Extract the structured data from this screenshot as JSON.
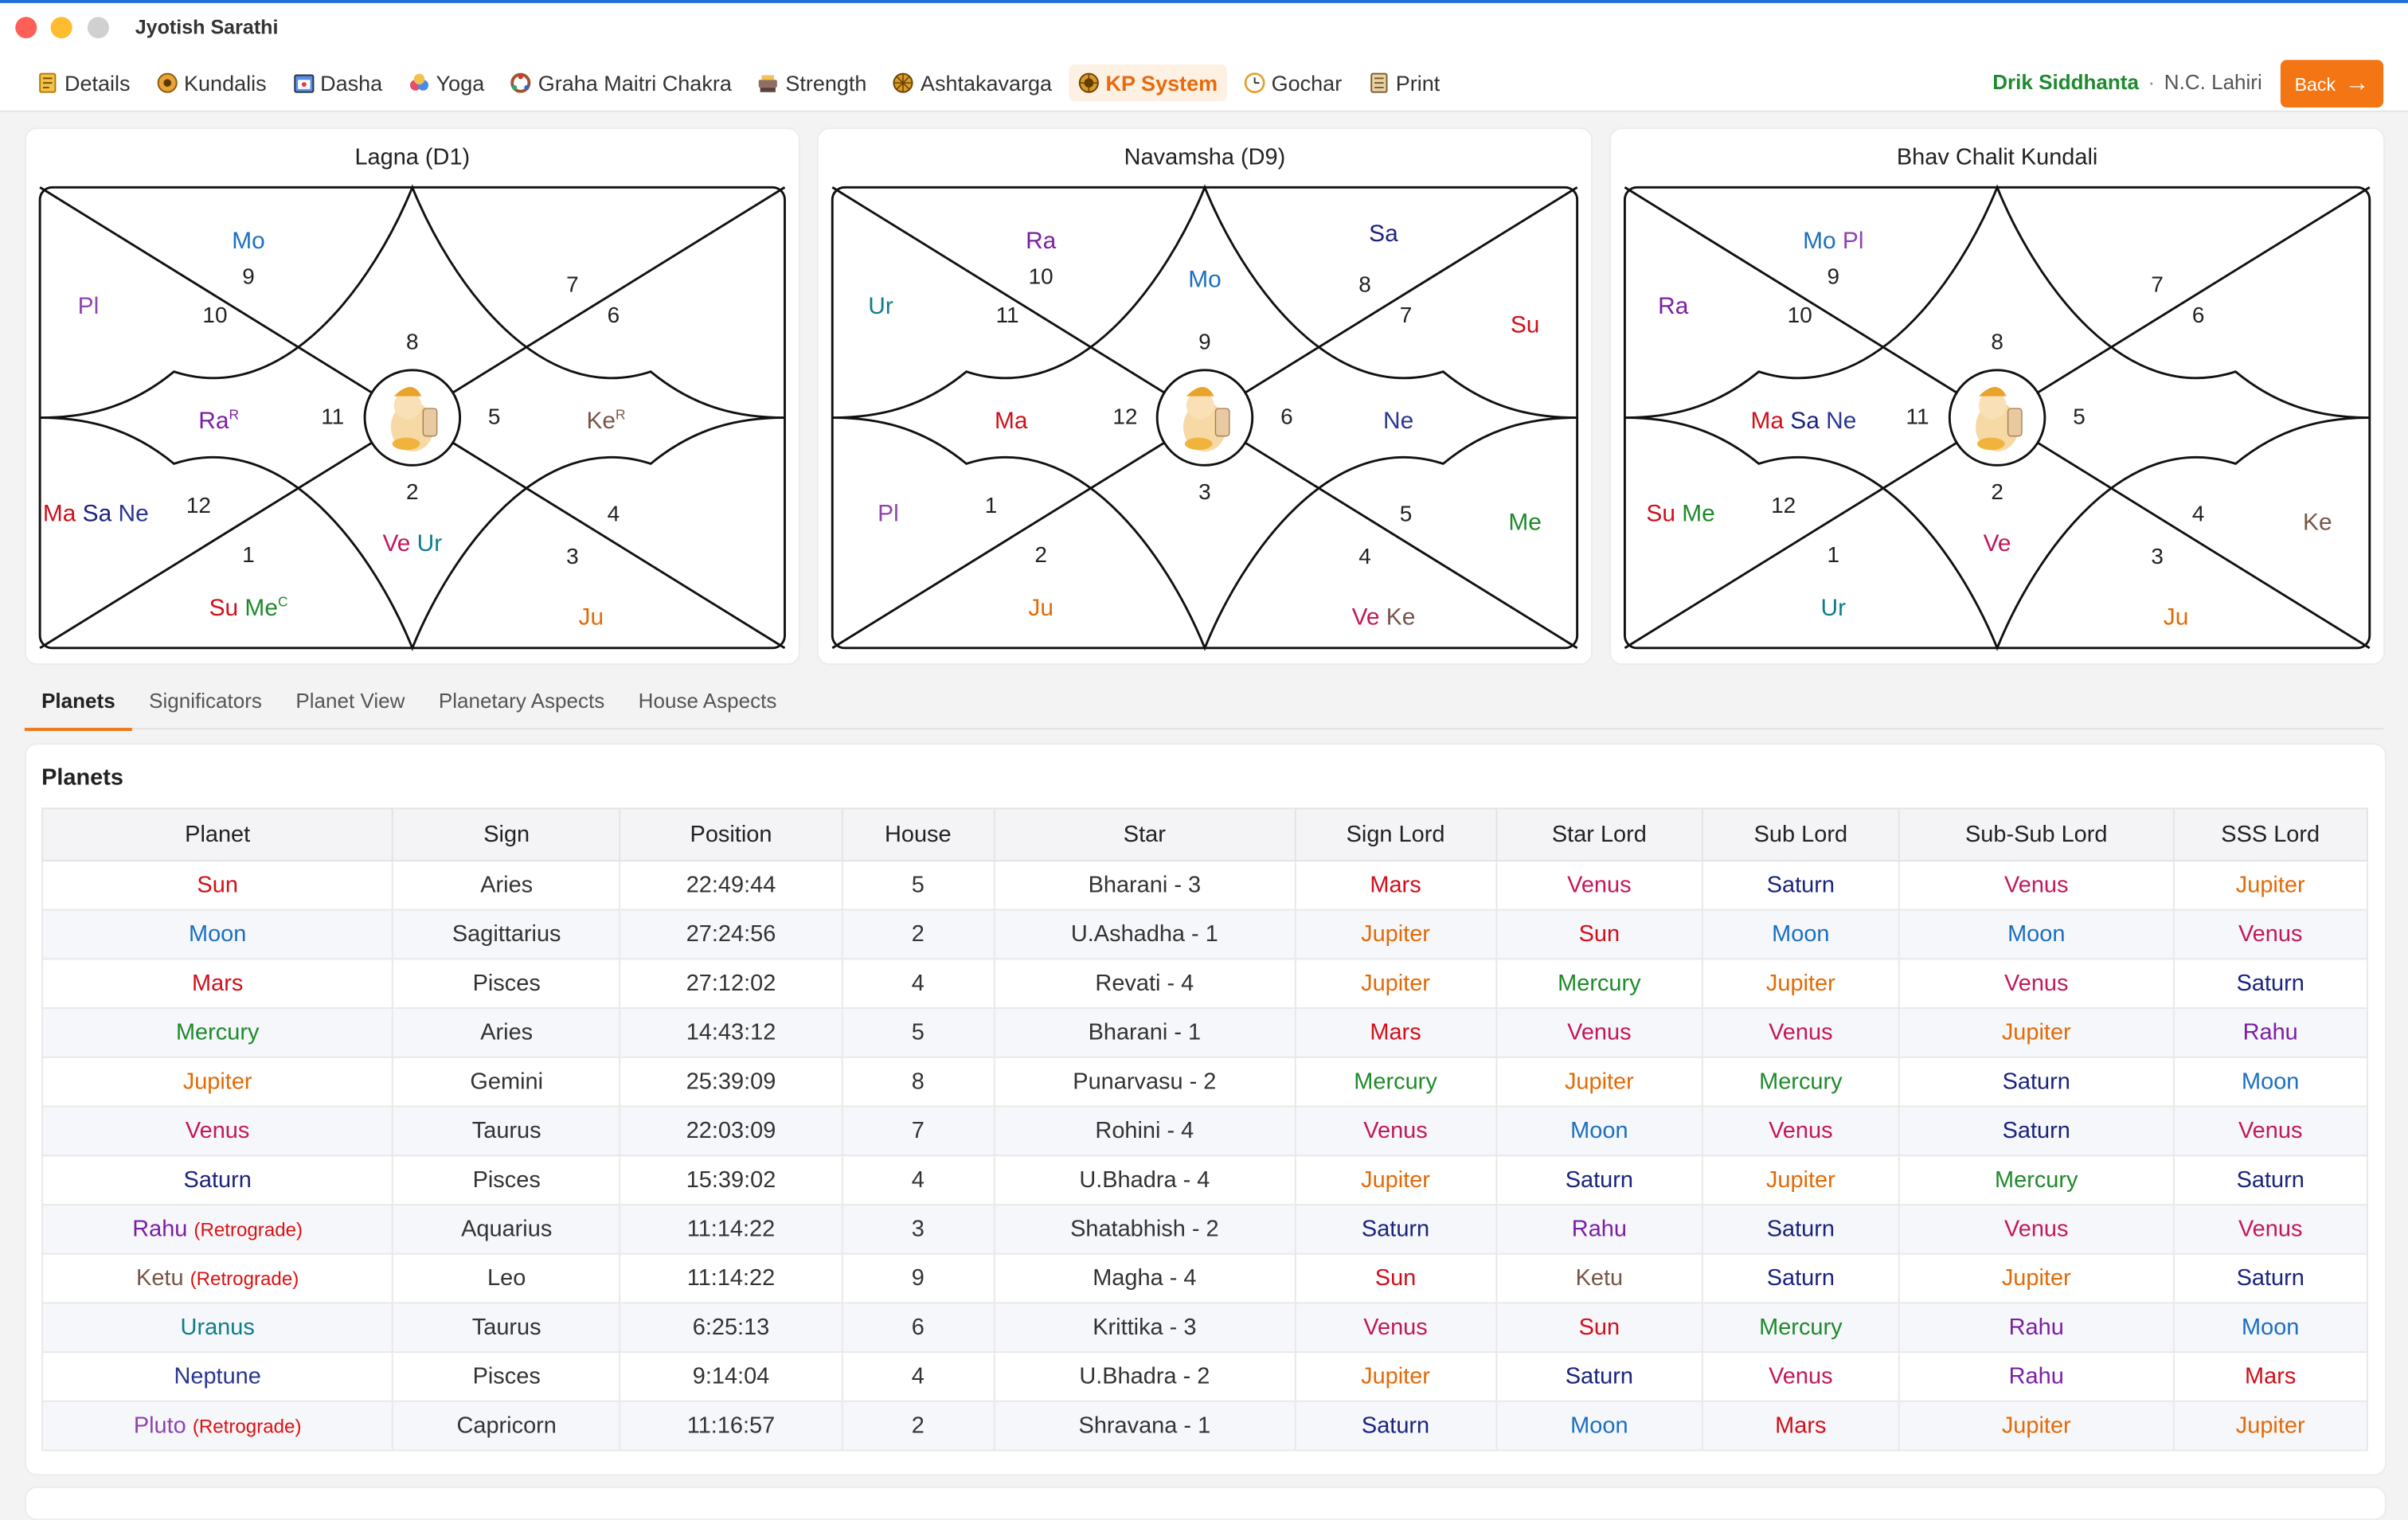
{
  "app": {
    "title": "Jyotish Sarathi"
  },
  "nav": [
    {
      "label": "Details",
      "icon": "details-icon"
    },
    {
      "label": "Kundalis",
      "icon": "kundalis-icon"
    },
    {
      "label": "Dasha",
      "icon": "dasha-icon"
    },
    {
      "label": "Yoga",
      "icon": "yoga-icon"
    },
    {
      "label": "Graha Maitri Chakra",
      "icon": "graha-maitri-icon"
    },
    {
      "label": "Strength",
      "icon": "strength-icon"
    },
    {
      "label": "Ashtakavarga",
      "icon": "ashtakavarga-icon"
    },
    {
      "label": "KP System",
      "icon": "kp-system-icon",
      "active": true
    },
    {
      "label": "Gochar",
      "icon": "gochar-icon"
    },
    {
      "label": "Print",
      "icon": "print-icon"
    }
  ],
  "header": {
    "siddhanta": "Drik Siddhanta",
    "separator": "·",
    "ayanamsa": "N.C. Lahiri",
    "back_label": "Back"
  },
  "colors": {
    "Su": "#d10f1a",
    "Mo": "#1a6fc0",
    "Ma": "#d10f1a",
    "Me": "#1e8a2a",
    "Ju": "#e36a05",
    "Ve": "#c2185b",
    "Sa": "#1a237e",
    "Ra": "#7b1fa2",
    "Ke": "#795548",
    "Ur": "#0e7c8c",
    "Ne": "#283593",
    "Pl": "#8e44ad",
    "Sun": "#d10f1a",
    "Moon": "#1a6fc0",
    "Mars": "#d10f1a",
    "Mercury": "#1e8a2a",
    "Jupiter": "#e36a05",
    "Venus": "#c2185b",
    "Saturn": "#1a237e",
    "Rahu": "#7b1fa2",
    "Ketu": "#795548",
    "Uranus": "#0e7c8c",
    "Neptune": "#283593",
    "Pluto": "#8e44ad",
    "accent": "#f37514",
    "siddhanta": "#1f8a2f"
  },
  "charts": [
    {
      "title": "Lagna (D1)",
      "houses": [
        {
          "num": "8",
          "planets": []
        },
        {
          "num": "9",
          "planets": [
            {
              "p": "Mo"
            }
          ]
        },
        {
          "num": "10",
          "planets": [
            {
              "p": "Pl"
            }
          ]
        },
        {
          "num": "11",
          "planets": [
            {
              "p": "Ra",
              "sup": "R"
            }
          ]
        },
        {
          "num": "12",
          "planets": [
            {
              "p": "Ma"
            },
            {
              "p": "Sa"
            },
            {
              "p": "Ne"
            }
          ]
        },
        {
          "num": "1",
          "planets": [
            {
              "p": "Su"
            },
            {
              "p": "Me",
              "sup": "C"
            }
          ]
        },
        {
          "num": "2",
          "planets": [
            {
              "p": "Ve"
            },
            {
              "p": "Ur"
            }
          ]
        },
        {
          "num": "3",
          "planets": [
            {
              "p": "Ju"
            }
          ]
        },
        {
          "num": "4",
          "planets": []
        },
        {
          "num": "5",
          "planets": [
            {
              "p": "Ke",
              "sup": "R"
            }
          ]
        },
        {
          "num": "6",
          "planets": []
        },
        {
          "num": "7",
          "planets": []
        }
      ]
    },
    {
      "title": "Navamsha (D9)",
      "houses": [
        {
          "num": "9",
          "planets": [
            {
              "p": "Mo"
            }
          ]
        },
        {
          "num": "10",
          "planets": [
            {
              "p": "Ra"
            }
          ]
        },
        {
          "num": "11",
          "planets": [
            {
              "p": "Ur"
            }
          ]
        },
        {
          "num": "12",
          "planets": [
            {
              "p": "Ma"
            }
          ]
        },
        {
          "num": "1",
          "planets": [
            {
              "p": "Pl"
            }
          ]
        },
        {
          "num": "2",
          "planets": [
            {
              "p": "Ju"
            }
          ]
        },
        {
          "num": "3",
          "planets": []
        },
        {
          "num": "4",
          "planets": [
            {
              "p": "Ve"
            },
            {
              "p": "Ke"
            }
          ]
        },
        {
          "num": "5",
          "planets": [
            {
              "p": "Me"
            }
          ]
        },
        {
          "num": "6",
          "planets": [
            {
              "p": "Ne"
            }
          ]
        },
        {
          "num": "7",
          "planets": [
            {
              "p": "Su"
            }
          ]
        },
        {
          "num": "8",
          "planets": [
            {
              "p": "Sa"
            }
          ]
        }
      ]
    },
    {
      "title": "Bhav Chalit Kundali",
      "houses": [
        {
          "num": "8",
          "planets": []
        },
        {
          "num": "9",
          "planets": [
            {
              "p": "Mo"
            },
            {
              "p": "Pl"
            }
          ]
        },
        {
          "num": "10",
          "planets": [
            {
              "p": "Ra"
            }
          ]
        },
        {
          "num": "11",
          "planets": [
            {
              "p": "Ma"
            },
            {
              "p": "Sa"
            },
            {
              "p": "Ne"
            }
          ]
        },
        {
          "num": "12",
          "planets": [
            {
              "p": "Su"
            },
            {
              "p": "Me"
            }
          ]
        },
        {
          "num": "1",
          "planets": [
            {
              "p": "Ur"
            }
          ]
        },
        {
          "num": "2",
          "planets": [
            {
              "p": "Ve"
            }
          ]
        },
        {
          "num": "3",
          "planets": [
            {
              "p": "Ju"
            }
          ]
        },
        {
          "num": "4",
          "planets": [
            {
              "p": "Ke"
            }
          ]
        },
        {
          "num": "5",
          "planets": []
        },
        {
          "num": "6",
          "planets": []
        },
        {
          "num": "7",
          "planets": []
        }
      ]
    }
  ],
  "tabs": [
    {
      "label": "Planets",
      "active": true
    },
    {
      "label": "Significators"
    },
    {
      "label": "Planet View"
    },
    {
      "label": "Planetary Aspects"
    },
    {
      "label": "House Aspects"
    }
  ],
  "planets_section": {
    "title": "Planets",
    "columns": [
      "Planet",
      "Sign",
      "Position",
      "House",
      "Star",
      "Sign Lord",
      "Star Lord",
      "Sub Lord",
      "Sub-Sub Lord",
      "SSS Lord"
    ],
    "rows": [
      {
        "planet": "Sun",
        "sign": "Aries",
        "position": "22:49:44",
        "house": "5",
        "star": "Bharani - 3",
        "sign_lord": "Mars",
        "star_lord": "Venus",
        "sub_lord": "Saturn",
        "sub_sub_lord": "Venus",
        "sss_lord": "Jupiter"
      },
      {
        "planet": "Moon",
        "sign": "Sagittarius",
        "position": "27:24:56",
        "house": "2",
        "star": "U.Ashadha - 1",
        "sign_lord": "Jupiter",
        "star_lord": "Sun",
        "sub_lord": "Moon",
        "sub_sub_lord": "Moon",
        "sss_lord": "Venus"
      },
      {
        "planet": "Mars",
        "sign": "Pisces",
        "position": "27:12:02",
        "house": "4",
        "star": "Revati - 4",
        "sign_lord": "Jupiter",
        "star_lord": "Mercury",
        "sub_lord": "Jupiter",
        "sub_sub_lord": "Venus",
        "sss_lord": "Saturn"
      },
      {
        "planet": "Mercury",
        "sign": "Aries",
        "position": "14:43:12",
        "house": "5",
        "star": "Bharani - 1",
        "sign_lord": "Mars",
        "star_lord": "Venus",
        "sub_lord": "Venus",
        "sub_sub_lord": "Jupiter",
        "sss_lord": "Rahu"
      },
      {
        "planet": "Jupiter",
        "sign": "Gemini",
        "position": "25:39:09",
        "house": "8",
        "star": "Punarvasu - 2",
        "sign_lord": "Mercury",
        "star_lord": "Jupiter",
        "sub_lord": "Mercury",
        "sub_sub_lord": "Saturn",
        "sss_lord": "Moon"
      },
      {
        "planet": "Venus",
        "sign": "Taurus",
        "position": "22:03:09",
        "house": "7",
        "star": "Rohini - 4",
        "sign_lord": "Venus",
        "star_lord": "Moon",
        "sub_lord": "Venus",
        "sub_sub_lord": "Saturn",
        "sss_lord": "Venus"
      },
      {
        "planet": "Saturn",
        "sign": "Pisces",
        "position": "15:39:02",
        "house": "4",
        "star": "U.Bhadra - 4",
        "sign_lord": "Jupiter",
        "star_lord": "Saturn",
        "sub_lord": "Jupiter",
        "sub_sub_lord": "Mercury",
        "sss_lord": "Saturn"
      },
      {
        "planet": "Rahu",
        "retro": "(Retrograde)",
        "sign": "Aquarius",
        "position": "11:14:22",
        "house": "3",
        "star": "Shatabhish - 2",
        "sign_lord": "Saturn",
        "star_lord": "Rahu",
        "sub_lord": "Saturn",
        "sub_sub_lord": "Venus",
        "sss_lord": "Venus"
      },
      {
        "planet": "Ketu",
        "retro": "(Retrograde)",
        "sign": "Leo",
        "position": "11:14:22",
        "house": "9",
        "star": "Magha - 4",
        "sign_lord": "Sun",
        "star_lord": "Ketu",
        "sub_lord": "Saturn",
        "sub_sub_lord": "Jupiter",
        "sss_lord": "Saturn"
      },
      {
        "planet": "Uranus",
        "sign": "Taurus",
        "position": "6:25:13",
        "house": "6",
        "star": "Krittika - 3",
        "sign_lord": "Venus",
        "star_lord": "Sun",
        "sub_lord": "Mercury",
        "sub_sub_lord": "Rahu",
        "sss_lord": "Moon"
      },
      {
        "planet": "Neptune",
        "sign": "Pisces",
        "position": "9:14:04",
        "house": "4",
        "star": "U.Bhadra - 2",
        "sign_lord": "Jupiter",
        "star_lord": "Saturn",
        "sub_lord": "Venus",
        "sub_sub_lord": "Rahu",
        "sss_lord": "Mars"
      },
      {
        "planet": "Pluto",
        "retro": "(Retrograde)",
        "sign": "Capricorn",
        "position": "11:16:57",
        "house": "2",
        "star": "Shravana - 1",
        "sign_lord": "Saturn",
        "star_lord": "Moon",
        "sub_lord": "Mars",
        "sub_sub_lord": "Jupiter",
        "sss_lord": "Jupiter"
      }
    ]
  }
}
